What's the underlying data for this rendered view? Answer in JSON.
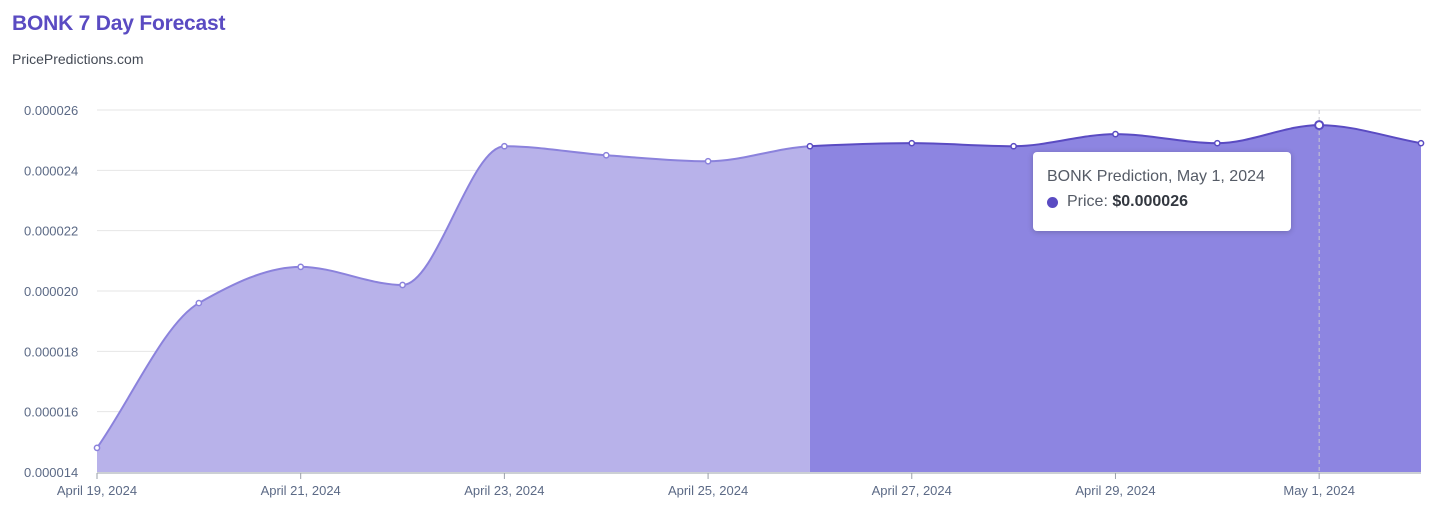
{
  "title": "BONK 7 Day Forecast",
  "subtitle": "PricePredictions.com",
  "colors": {
    "title": "#5a4bc2",
    "history_fill": "#b8b2ea",
    "forecast_fill": "#8d85e1",
    "history_line": "#8b82dc",
    "forecast_line": "#5a4bc2",
    "grid": "#e6e6e6",
    "axis_text": "#5c6a86"
  },
  "tooltip": {
    "title": "BONK Prediction, May 1, 2024",
    "label": "Price:",
    "value": "$0.000026"
  },
  "chart_data": {
    "type": "area",
    "title": "BONK 7 Day Forecast",
    "xlabel": "",
    "ylabel": "",
    "x": [
      "2024-04-19",
      "2024-04-20",
      "2024-04-21",
      "2024-04-22",
      "2024-04-23",
      "2024-04-24",
      "2024-04-25",
      "2024-04-26",
      "2024-04-27",
      "2024-04-28",
      "2024-04-29",
      "2024-04-30",
      "2024-05-01",
      "2024-05-02"
    ],
    "y": [
      1.48e-05,
      1.96e-05,
      2.08e-05,
      2.02e-05,
      2.48e-05,
      2.45e-05,
      2.43e-05,
      2.48e-05,
      2.49e-05,
      2.48e-05,
      2.52e-05,
      2.49e-05,
      2.55e-05,
      2.49e-05
    ],
    "forecast_start": "2024-04-26",
    "highlighted_point": "2024-05-01",
    "ylim": [
      1.4e-05,
      2.6e-05
    ],
    "y_ticks": [
      "0.000014",
      "0.000016",
      "0.000018",
      "0.000020",
      "0.000022",
      "0.000024",
      "0.000026"
    ],
    "x_ticks": [
      {
        "date": "2024-04-19",
        "label": "April 19, 2024"
      },
      {
        "date": "2024-04-21",
        "label": "April 21, 2024"
      },
      {
        "date": "2024-04-23",
        "label": "April 23, 2024"
      },
      {
        "date": "2024-04-25",
        "label": "April 25, 2024"
      },
      {
        "date": "2024-04-27",
        "label": "April 27, 2024"
      },
      {
        "date": "2024-04-29",
        "label": "April 29, 2024"
      },
      {
        "date": "2024-05-01",
        "label": "May 1, 2024"
      }
    ],
    "grid": true,
    "legend": "none"
  }
}
